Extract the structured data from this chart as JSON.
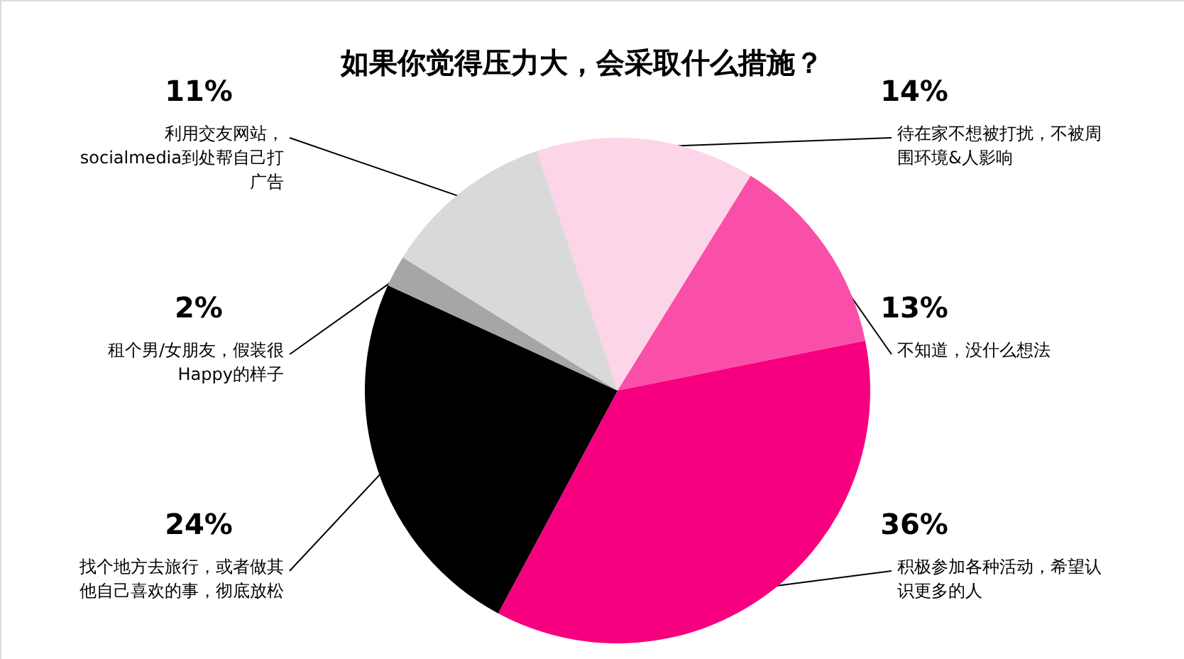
{
  "chart_data": {
    "type": "pie",
    "title": "如果你觉得压力大，会采取什么措施？",
    "categories": [
      "待在家不想被打扰，不被周围环境&人影响",
      "不知道，没什么想法",
      "积极参加各种活动，希望认识更多的人",
      "找个地方去旅行，或者做其他自己喜欢的事，彻底放松",
      "租个男/女朋友，假装很Happy的样子",
      "利用交友网站，socialmedia到处帮自己打广告"
    ],
    "values": [
      14,
      13,
      36,
      24,
      2,
      11
    ],
    "value_labels": [
      "14%",
      "13%",
      "36%",
      "24%",
      "2%",
      "11%"
    ],
    "colors": [
      "#fdd5e8",
      "#f94fa8",
      "#f7007f",
      "#000000",
      "#a6a6a6",
      "#d9d9d9"
    ]
  }
}
